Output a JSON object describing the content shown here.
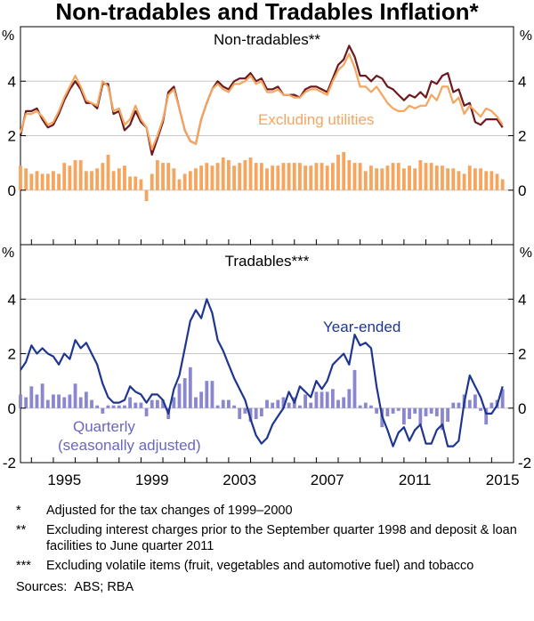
{
  "chart_data": {
    "title": "Non-tradables and Tradables Inflation*",
    "x_tick_labels": [
      "1995",
      "1999",
      "2003",
      "2007",
      "2011",
      "2015"
    ],
    "x_range": [
      1993.5,
      2016.0
    ],
    "unit_label": "%",
    "panels": [
      {
        "type": "line+bar",
        "title": "Non-tradables**",
        "ylim": [
          -2,
          6
        ],
        "y_ticks": [
          "-2",
          "0",
          "2",
          "4",
          "6"
        ],
        "y_tick_labels": [
          "0",
          "2",
          "4"
        ],
        "series": [
          {
            "name": "Non-tradables year-ended",
            "type": "line",
            "color": "#6b1a1f",
            "start": 1993.5,
            "step": 0.25,
            "values": [
              2.0,
              2.9,
              2.9,
              3.0,
              2.6,
              2.3,
              2.4,
              2.8,
              3.3,
              3.7,
              4.0,
              3.7,
              3.2,
              3.2,
              3.0,
              3.9,
              3.9,
              2.8,
              2.9,
              2.2,
              2.4,
              2.9,
              2.5,
              2.3,
              1.3,
              1.9,
              2.5,
              3.6,
              3.8,
              3.0,
              2.2,
              1.8,
              1.7,
              2.6,
              3.2,
              3.7,
              4.0,
              3.8,
              3.7,
              4.0,
              4.1,
              4.1,
              4.3,
              4.0,
              4.1,
              3.7,
              3.7,
              3.8,
              3.5,
              3.5,
              3.5,
              3.4,
              3.7,
              3.8,
              3.8,
              3.7,
              3.6,
              4.1,
              4.6,
              4.8,
              5.3,
              4.9,
              4.2,
              4.2,
              4.0,
              4.2,
              4.1,
              3.8,
              3.7,
              3.5,
              3.3,
              3.5,
              3.4,
              3.6,
              3.4,
              4.0,
              3.9,
              4.2,
              4.3,
              3.6,
              3.7,
              3.1,
              3.2,
              2.5,
              2.4,
              2.6,
              2.6,
              2.6,
              2.3
            ]
          },
          {
            "name": "Excluding utilities",
            "type": "line",
            "color": "#f6a55f",
            "start": 1993.5,
            "step": 0.25,
            "values": [
              2.1,
              2.8,
              2.8,
              2.9,
              2.7,
              2.4,
              2.5,
              2.9,
              3.4,
              3.8,
              4.2,
              3.8,
              3.3,
              3.2,
              3.1,
              4.0,
              3.8,
              2.9,
              3.0,
              2.4,
              2.6,
              3.1,
              2.6,
              2.3,
              1.5,
              2.0,
              2.6,
              3.5,
              3.7,
              3.0,
              2.2,
              1.8,
              1.7,
              2.6,
              3.2,
              3.7,
              3.9,
              3.7,
              3.6,
              3.9,
              3.9,
              4.0,
              4.2,
              3.9,
              4.0,
              3.6,
              3.6,
              3.7,
              3.5,
              3.5,
              3.4,
              3.4,
              3.6,
              3.7,
              3.7,
              3.6,
              3.5,
              4.0,
              4.4,
              4.6,
              5.0,
              4.5,
              3.8,
              3.8,
              3.6,
              3.8,
              3.5,
              3.2,
              3.0,
              2.9,
              2.9,
              3.1,
              3.0,
              3.1,
              3.1,
              3.5,
              3.3,
              3.8,
              3.8,
              3.2,
              3.4,
              2.8,
              3.1,
              2.9,
              2.7,
              3.0,
              2.9,
              2.7,
              2.4
            ]
          },
          {
            "name": "Non-tradables quarterly",
            "type": "bar",
            "color": "#f6a55f",
            "start": 1993.5,
            "step": 0.25,
            "values": [
              0.9,
              0.8,
              0.6,
              0.7,
              0.6,
              0.6,
              0.7,
              0.6,
              1.0,
              0.9,
              1.1,
              1.1,
              0.7,
              0.7,
              0.8,
              1.0,
              1.3,
              0.7,
              0.8,
              0.9,
              0.5,
              0.5,
              0.4,
              -0.4,
              0.6,
              1.1,
              1.0,
              1.0,
              0.8,
              0.4,
              0.6,
              0.7,
              0.8,
              0.9,
              1.0,
              0.9,
              1.0,
              1.2,
              1.1,
              0.9,
              1.0,
              1.1,
              1.2,
              1.0,
              1.0,
              0.8,
              0.9,
              0.9,
              1.0,
              1.0,
              1.0,
              1.0,
              0.9,
              0.9,
              1.0,
              1.0,
              0.9,
              1.0,
              1.3,
              1.4,
              1.1,
              1.0,
              1.0,
              0.7,
              0.9,
              0.8,
              0.8,
              0.9,
              1.0,
              1.0,
              0.8,
              0.9,
              0.8,
              1.1,
              1.0,
              1.0,
              0.9,
              0.9,
              0.8,
              0.8,
              0.7,
              0.6,
              0.9,
              0.8,
              0.8,
              0.7,
              0.7,
              0.6,
              0.4
            ]
          }
        ],
        "annotations": [
          "Excluding utilities"
        ]
      },
      {
        "type": "line+bar",
        "title": "Tradables***",
        "ylim": [
          -2,
          6
        ],
        "y_ticks": [
          "-2",
          "0",
          "2",
          "4",
          "6"
        ],
        "y_tick_labels": [
          "-2",
          "0",
          "2",
          "4"
        ],
        "series": [
          {
            "name": "Year-ended",
            "type": "line",
            "color": "#1f3690",
            "start": 1993.5,
            "step": 0.25,
            "values": [
              1.4,
              1.7,
              2.3,
              2.0,
              2.2,
              2.0,
              1.9,
              1.6,
              2.0,
              1.8,
              2.5,
              2.2,
              2.4,
              2.0,
              1.6,
              0.9,
              0.4,
              0.2,
              0.2,
              0.3,
              0.8,
              0.6,
              0.5,
              0.2,
              0.5,
              0.5,
              0.3,
              -0.2,
              0.7,
              1.2,
              2.2,
              3.2,
              3.6,
              3.3,
              4.0,
              3.5,
              2.5,
              2.1,
              1.6,
              1.1,
              0.7,
              0.3,
              -0.4,
              -1.0,
              -1.3,
              -1.1,
              -0.6,
              -0.3,
              0.0,
              0.6,
              0.2,
              0.8,
              0.6,
              0.4,
              1.0,
              0.7,
              1.0,
              1.6,
              1.8,
              2.0,
              1.6,
              2.7,
              2.3,
              2.4,
              2.2,
              0.8,
              -0.3,
              -0.8,
              -1.4,
              -0.9,
              -0.7,
              -1.2,
              -0.8,
              -0.6,
              -1.3,
              -1.3,
              -0.8,
              -0.6,
              -1.4,
              -1.4,
              -1.2,
              0.2,
              1.2,
              0.8,
              0.4,
              -0.2,
              -0.2,
              0.1,
              0.8
            ]
          },
          {
            "name": "Quarterly (seasonally adjusted)",
            "type": "bar",
            "color": "#8a87cf",
            "start": 1993.5,
            "step": 0.25,
            "values": [
              0.5,
              0.4,
              0.8,
              0.5,
              0.9,
              0.3,
              0.5,
              0.5,
              0.4,
              0.5,
              0.9,
              0.4,
              0.6,
              0.3,
              0.1,
              -0.2,
              0.1,
              0.1,
              0.1,
              0.1,
              0.4,
              0.2,
              0.2,
              -0.3,
              0.3,
              0.3,
              0.3,
              -0.4,
              0.4,
              0.9,
              1.1,
              1.5,
              0.4,
              0.6,
              1.0,
              1.0,
              0.1,
              0.3,
              0.3,
              0.1,
              -0.4,
              -0.2,
              -0.5,
              -0.4,
              -0.3,
              0.3,
              0.2,
              0.3,
              0.4,
              0.2,
              0.4,
              0.1,
              0.5,
              0.2,
              0.6,
              0.6,
              0.6,
              0.7,
              0.3,
              0.4,
              0.7,
              1.4,
              0.1,
              0.2,
              0.1,
              -0.2,
              -0.7,
              -0.3,
              -0.2,
              -0.1,
              -0.6,
              -0.4,
              -0.2,
              -0.6,
              -0.3,
              -0.2,
              -0.3,
              -0.8,
              -0.5,
              0.2,
              0.2,
              0.5,
              0.3,
              0.5,
              -0.1,
              -0.6,
              0.2,
              0.3,
              0.7
            ]
          }
        ],
        "annotations": [
          "Year-ended",
          "Quarterly",
          "(seasonally adjusted)"
        ]
      }
    ]
  },
  "notes": [
    {
      "mark": "*",
      "text": "Adjusted for the tax changes of 1999–2000"
    },
    {
      "mark": "**",
      "text": "Excluding interest charges prior to the September quarter 1998 and deposit & loan facilities to June quarter 2011"
    },
    {
      "mark": "***",
      "text": "Excluding volatile items (fruit, vegetables and automotive fuel) and tobacco"
    }
  ],
  "sources": "Sources:  ABS; RBA"
}
